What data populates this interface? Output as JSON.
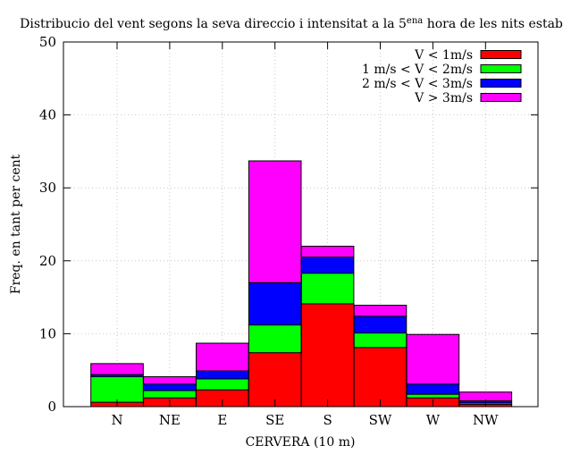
{
  "chart_data": {
    "type": "bar",
    "stacked": true,
    "title_prefix": "Distribucio del vent segons la seva direccio i intensitat a la 5",
    "title_sup": "ena",
    "title_suffix": " hora de les nits estables",
    "xlabel": "CERVERA (10 m)",
    "ylabel": "Freq. en tant per cent",
    "ylim": [
      0,
      50
    ],
    "yticks": [
      0,
      10,
      20,
      30,
      40,
      50
    ],
    "grid": true,
    "legend_position": "top-right",
    "categories": [
      "N",
      "NE",
      "E",
      "SE",
      "S",
      "SW",
      "W",
      "NW"
    ],
    "series": [
      {
        "name": "V < 1m/s",
        "color": "#ff0000",
        "values": [
          0.6,
          1.2,
          2.3,
          7.4,
          14.1,
          8.1,
          1.2,
          0.3
        ]
      },
      {
        "name": "1 m/s < V < 2m/s",
        "color": "#00ff00",
        "values": [
          3.5,
          1.0,
          1.5,
          3.8,
          4.2,
          2.0,
          0.5,
          0.2
        ]
      },
      {
        "name": "2 m/s < V < 3m/s",
        "color": "#0000ff",
        "values": [
          0.3,
          0.9,
          1.1,
          5.8,
          2.2,
          2.3,
          1.4,
          0.3
        ]
      },
      {
        "name": "V > 3m/s",
        "color": "#ff00ff",
        "values": [
          1.5,
          1.0,
          3.8,
          16.7,
          1.5,
          1.5,
          6.8,
          1.2
        ]
      }
    ]
  }
}
